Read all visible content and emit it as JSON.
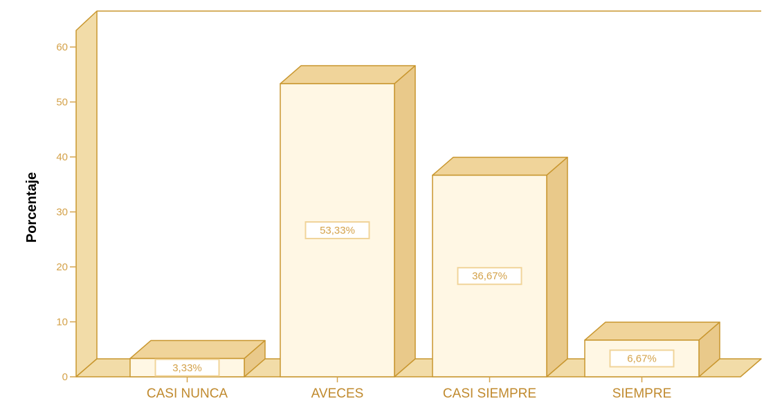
{
  "chart_data": {
    "type": "bar",
    "categories": [
      "CASI NUNCA",
      "AVECES",
      "CASI SIEMPRE",
      "SIEMPRE"
    ],
    "values": [
      3.33,
      53.33,
      36.67,
      6.67
    ],
    "data_labels": [
      "3,33%",
      "53,33%",
      "36,67%",
      "6,67%"
    ],
    "ylabel": "Porcentaje",
    "xlabel": "",
    "ylim": [
      0,
      60
    ],
    "yticks": [
      0,
      10,
      20,
      30,
      40,
      50,
      60
    ],
    "three_d": true,
    "grid": false,
    "legend": "none"
  },
  "colors": {
    "axis_text": "#D4A24A",
    "label_text": "#C08A2E",
    "bar_front": "#FFF7E4",
    "bar_top": "#F0D49A",
    "bar_side": "#E9C98A",
    "wall": "#F2DCA8",
    "outline": "#C8962E"
  }
}
